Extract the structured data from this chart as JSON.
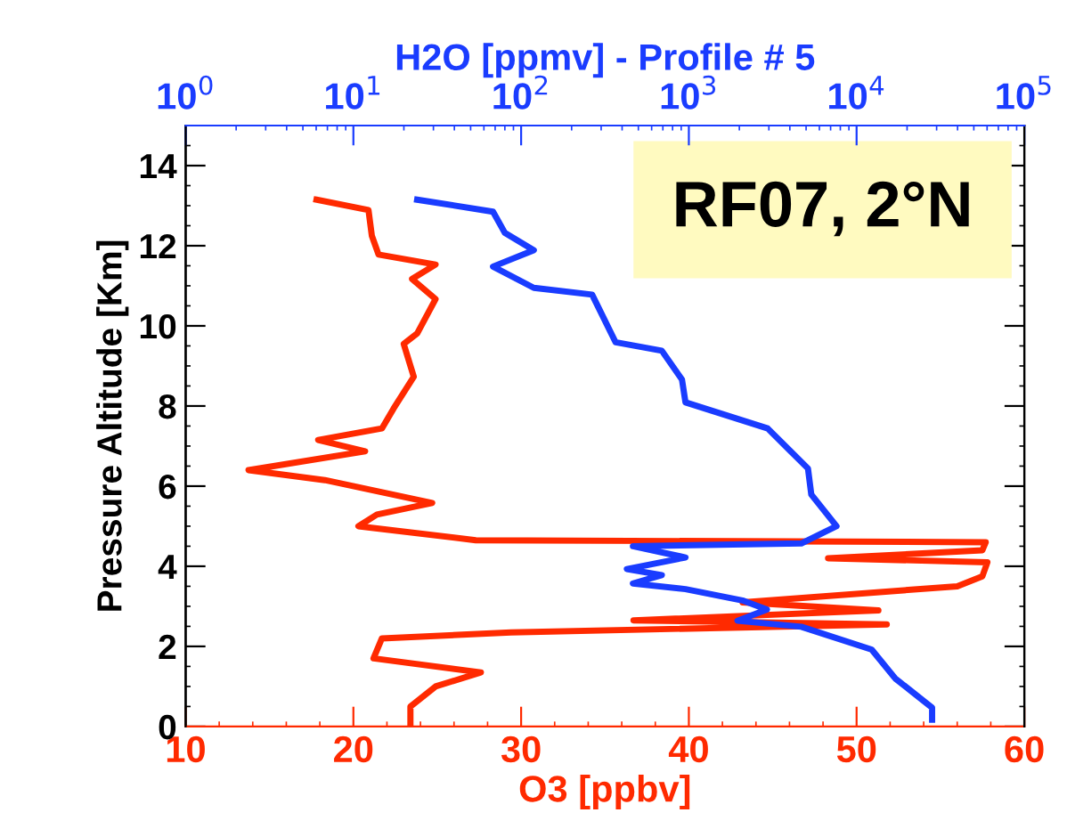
{
  "chart_data": {
    "type": "line",
    "xlabel": "O3 [ppbv]",
    "x2label": "H2O [ppmv] - Profile # 5",
    "ylabel": "Pressure Altitude [Km]",
    "xlim": [
      10,
      60
    ],
    "xticks": [
      10,
      20,
      30,
      40,
      50,
      60
    ],
    "x2lim": [
      1,
      100000
    ],
    "x2ticks": [
      {
        "value": 1,
        "label": "10$^{0}$"
      },
      {
        "value": 10,
        "label": "10$^{1}$"
      },
      {
        "value": 100,
        "label": "10$^{2}$"
      },
      {
        "value": 1000,
        "label": "10$^{3}$"
      },
      {
        "value": 10000,
        "label": "10$^{4}$"
      },
      {
        "value": 100000,
        "label": "10$^{5}$"
      }
    ],
    "log": "x2",
    "ylim": [
      0,
      15
    ],
    "yticks": [
      0,
      2,
      4,
      6,
      8,
      10,
      12,
      14
    ],
    "annotations": [
      "RF07, 2°N"
    ],
    "grid": false,
    "legend": false,
    "series": [
      {
        "color": "#ff2a00",
        "x": [
          17.8,
          20.9,
          21.1,
          21.5,
          24.9,
          23.5,
          24.9,
          23.8,
          23.0,
          23.6,
          22.4,
          21.7,
          17.9,
          20.7,
          13.75,
          18.3,
          24.7,
          21.4,
          20.3,
          27.3,
          57.7,
          57.5,
          48.3,
          57.8,
          57.5,
          56,
          43.2,
          51.3,
          36.7,
          51.8,
          29.4,
          21.7,
          21.2,
          27.6,
          24.9,
          23.4,
          23.4
        ],
        "values": [
          13.15,
          12.89,
          12.25,
          11.78,
          11.53,
          11.17,
          10.67,
          9.81,
          9.55,
          8.73,
          7.94,
          7.44,
          7.15,
          6.87,
          6.4,
          6.15,
          5.58,
          5.29,
          5.0,
          4.65,
          4.6,
          4.4,
          4.2,
          4.1,
          3.75,
          3.5,
          3.1,
          2.9,
          2.65,
          2.55,
          2.35,
          2.2,
          1.7,
          1.35,
          1.0,
          0.5,
          0.1
        ]
      },
      {
        "color": "#1a3cff",
        "axis": "x2",
        "x": [
          24,
          68,
          80,
          119,
          68,
          119,
          265,
          366,
          690,
          910,
          955,
          2950,
          5130,
          5370,
          7590,
          4680,
          464,
          955,
          427,
          690,
          464,
          955,
          2120,
          2920,
          1950,
          4680,
          12300,
          17000,
          28200,
          28200
        ],
        "values": [
          13.15,
          12.85,
          12.32,
          11.89,
          11.48,
          10.95,
          10.78,
          9.59,
          9.38,
          8.66,
          8.09,
          7.44,
          6.44,
          5.79,
          5.0,
          4.57,
          4.5,
          4.22,
          3.93,
          3.78,
          3.57,
          3.43,
          3.14,
          2.92,
          2.64,
          2.49,
          1.92,
          1.2,
          0.47,
          0.17
        ]
      }
    ]
  }
}
